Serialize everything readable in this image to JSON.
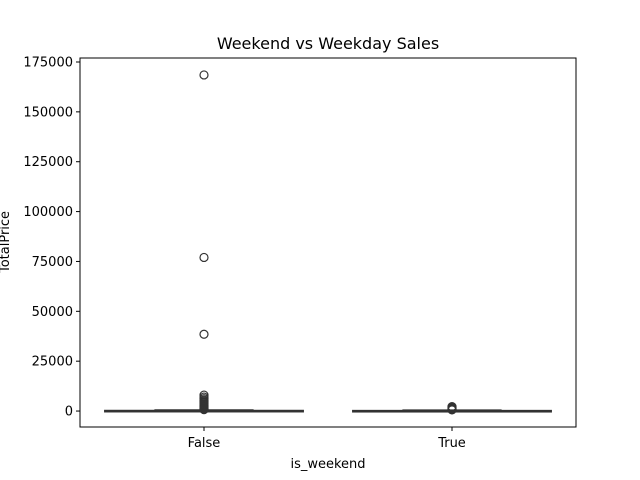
{
  "chart_data": {
    "type": "box",
    "title": "Weekend vs Weekday Sales",
    "xlabel": "is_weekend",
    "ylabel": "TotalPrice",
    "ylim": [
      -8000,
      177000
    ],
    "yticks": [
      0,
      25000,
      50000,
      75000,
      100000,
      125000,
      150000,
      175000
    ],
    "grid": false,
    "box_color": "#3f5f8f",
    "line_color": "#333333",
    "categories": [
      "False",
      "True"
    ],
    "boxes": [
      {
        "category": "False",
        "q1": 40,
        "median": 120,
        "q3": 260,
        "whisker_low": 0,
        "whisker_high": 540,
        "outliers": [
          168500,
          77000,
          38500,
          8000,
          7000,
          6200,
          5500,
          5000,
          4500,
          4000,
          3500,
          3000,
          2600,
          2200,
          1800,
          1500,
          1200,
          900,
          700
        ]
      },
      {
        "category": "True",
        "q1": 30,
        "median": 100,
        "q3": 220,
        "whisker_low": 0,
        "whisker_high": 480,
        "outliers": [
          2200,
          1900,
          1600,
          1300,
          1100,
          900,
          700,
          600
        ]
      }
    ]
  }
}
